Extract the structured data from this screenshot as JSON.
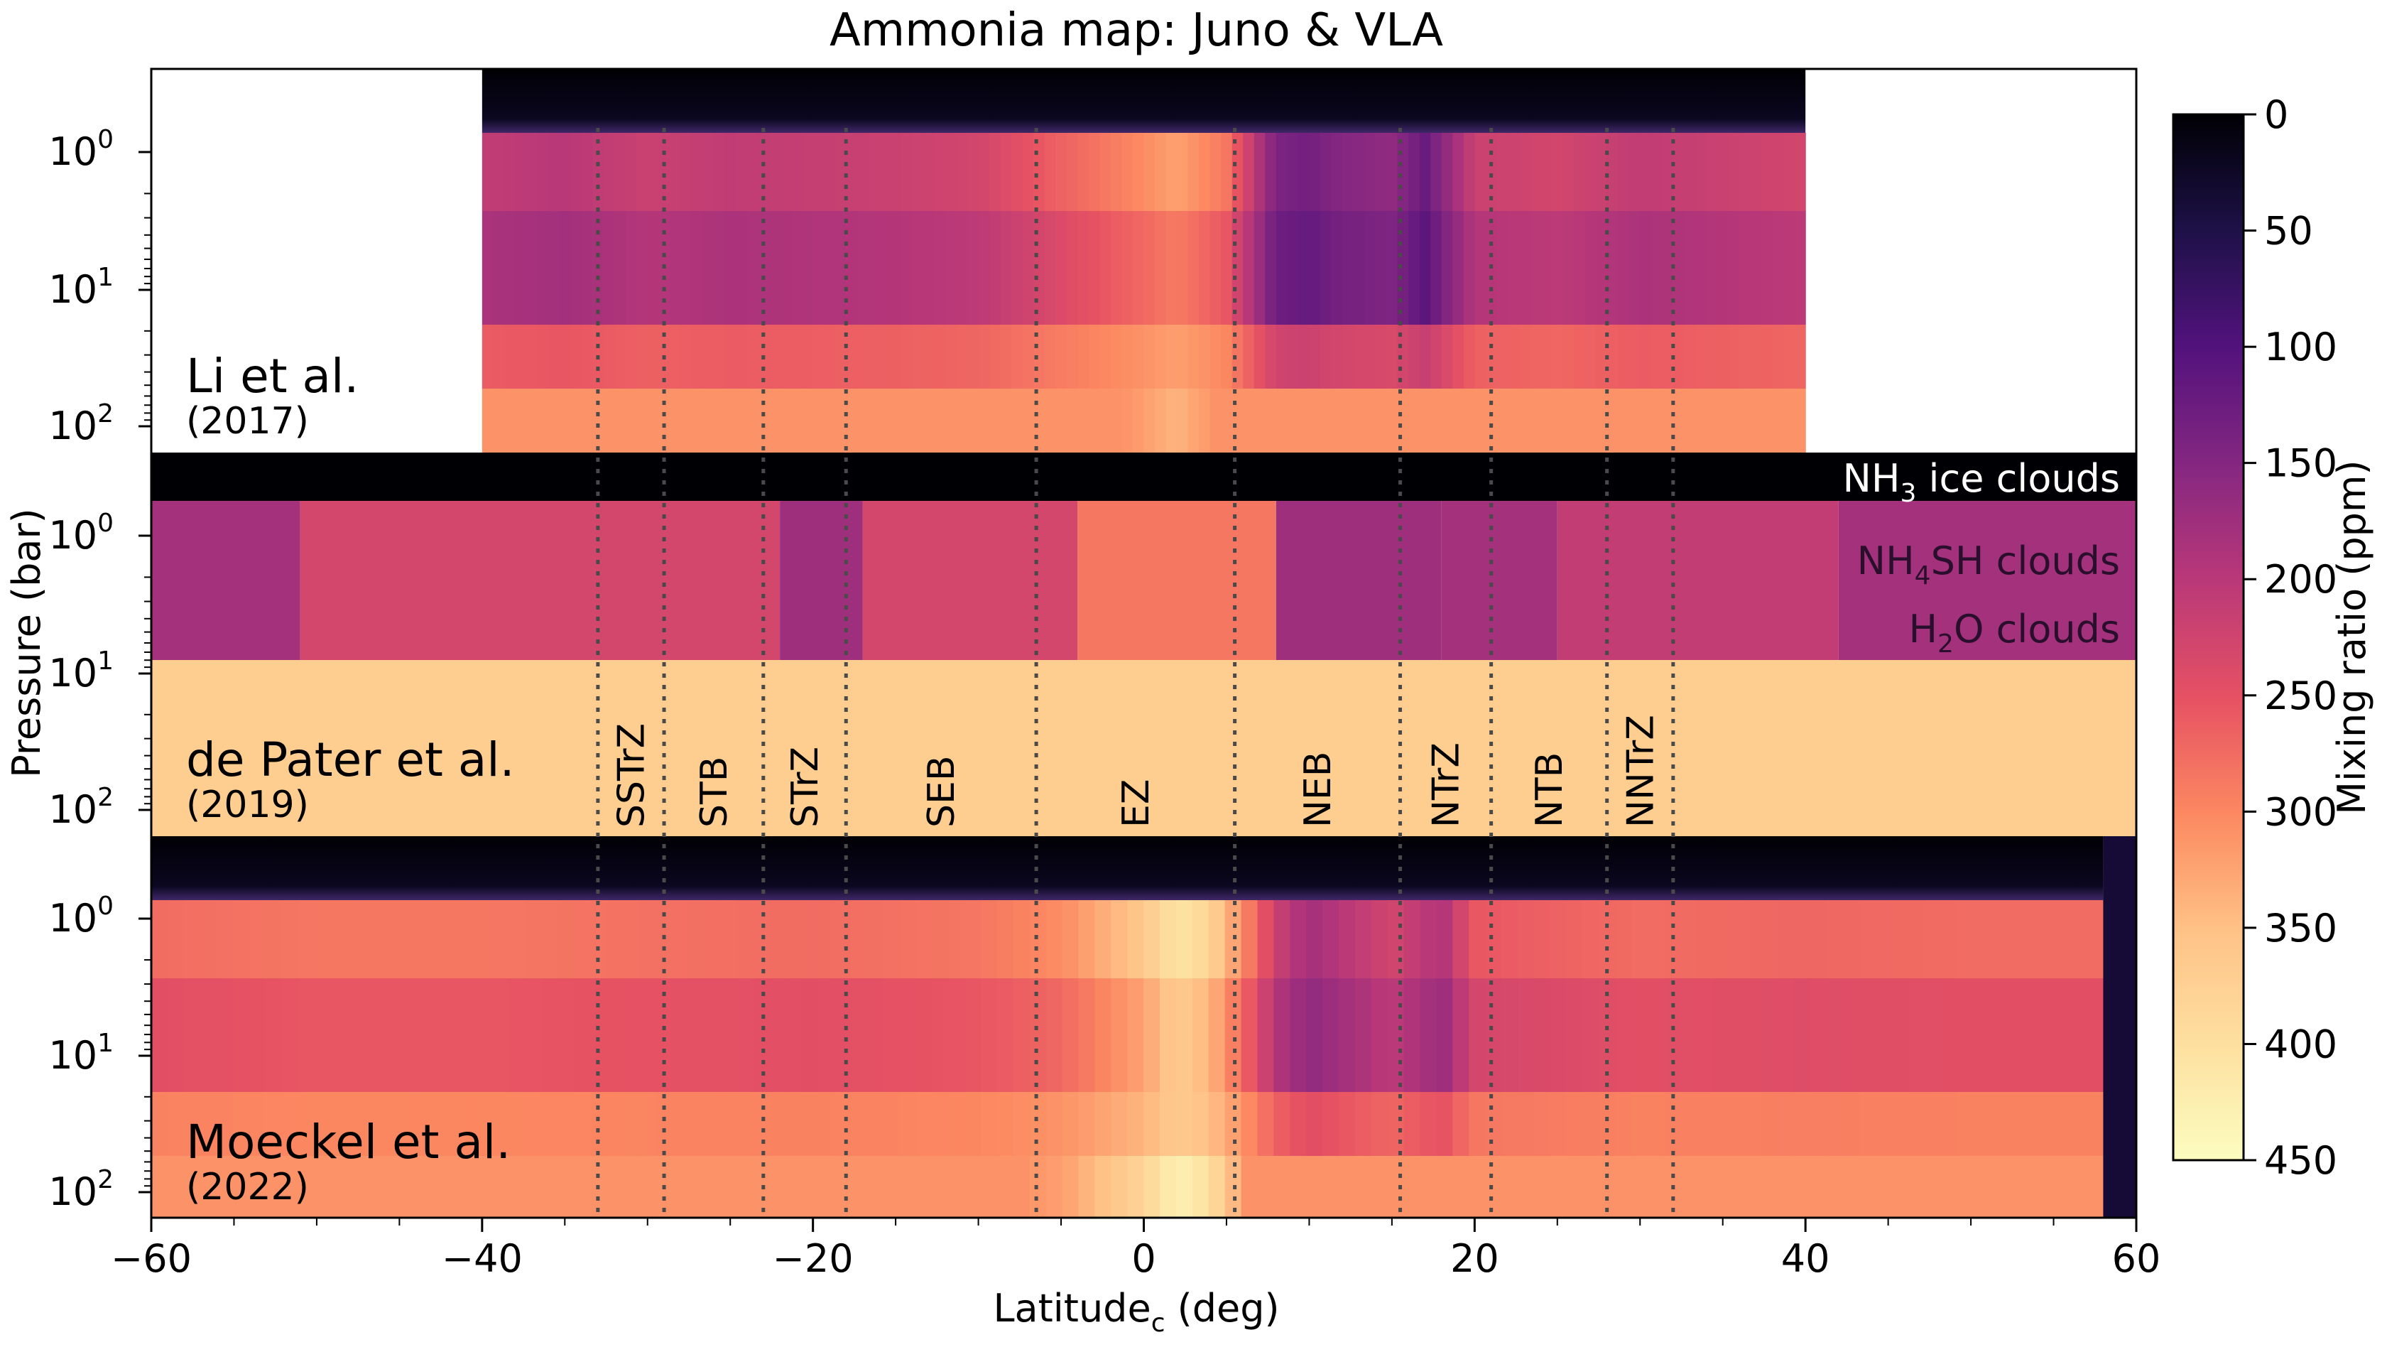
{
  "chart_data": {
    "type": "heatmap",
    "title": "Ammonia map: Juno & VLA",
    "xlabel": "Latitude",
    "xlabel_sub": "c",
    "xlabel_unit": " (deg)",
    "ylabel": "Pressure (bar)",
    "xlim": [
      -60,
      60
    ],
    "x_ticks": [
      -60,
      -40,
      -20,
      0,
      20,
      40,
      60
    ],
    "x_tick_labels": [
      "−60",
      "−40",
      "−20",
      "0",
      "20",
      "40",
      "60"
    ],
    "y_scale": "log",
    "y_tick_labels": [
      "10",
      "10",
      "10"
    ],
    "y_tick_exponents": [
      "0",
      "1",
      "2"
    ],
    "colorbar": {
      "label": "Mixing ratio (ppm)",
      "colormap": "magma",
      "range": [
        0,
        450
      ],
      "ticks": [
        0,
        50,
        100,
        150,
        200,
        250,
        300,
        350,
        400,
        450
      ],
      "tick_labels": [
        "0",
        "50",
        "100",
        "150",
        "200",
        "250",
        "300",
        "350",
        "400",
        "450"
      ]
    },
    "panels": [
      {
        "id": "li",
        "label_main": "Li et al.",
        "label_year": "(2017)",
        "lat_range": [
          -40,
          40
        ],
        "lat": [
          -40,
          -35,
          -30,
          -25,
          -20,
          -15,
          -10,
          -5,
          0,
          2,
          5,
          8,
          10,
          12,
          15,
          17,
          20,
          25,
          30,
          35,
          40
        ],
        "profile_ppm": [
          220,
          210,
          230,
          220,
          225,
          230,
          240,
          280,
          320,
          340,
          300,
          150,
          140,
          160,
          170,
          130,
          230,
          240,
          220,
          230,
          240
        ]
      },
      {
        "id": "depater",
        "label_main": "de Pater et al.",
        "label_year": "(2019)",
        "lat_range": [
          -60,
          60
        ],
        "deep_value_ppm": 370,
        "cloud_labels": [
          {
            "text": "NH",
            "sub": "3",
            "rest": " ice clouds"
          },
          {
            "text": "NH",
            "sub": "4",
            "rest": "SH clouds"
          },
          {
            "text": "H",
            "sub": "2",
            "rest": "O clouds"
          }
        ],
        "upper_blocks": [
          {
            "lat0": -60,
            "lat1": -51,
            "ppm": 180
          },
          {
            "lat0": -51,
            "lat1": -22,
            "ppm": 230
          },
          {
            "lat0": -22,
            "lat1": -17,
            "ppm": 175
          },
          {
            "lat0": -17,
            "lat1": -4,
            "ppm": 230
          },
          {
            "lat0": -4,
            "lat1": 8,
            "ppm": 285
          },
          {
            "lat0": 8,
            "lat1": 18,
            "ppm": 175
          },
          {
            "lat0": 18,
            "lat1": 25,
            "ppm": 180
          },
          {
            "lat0": 25,
            "lat1": 42,
            "ppm": 210
          },
          {
            "lat0": 42,
            "lat1": 60,
            "ppm": 180
          }
        ]
      },
      {
        "id": "moeckel",
        "label_main": "Moeckel et al.",
        "label_year": "(2022)",
        "lat_range": [
          -60,
          58
        ],
        "lat": [
          -60,
          -50,
          -40,
          -30,
          -20,
          -10,
          -5,
          0,
          2,
          4,
          6,
          8,
          10,
          12,
          15,
          18,
          20,
          30,
          40,
          50,
          58
        ],
        "profile_ppm": [
          290,
          300,
          300,
          295,
          290,
          300,
          320,
          380,
          430,
          400,
          320,
          230,
          190,
          210,
          240,
          200,
          270,
          290,
          285,
          290,
          290
        ]
      }
    ],
    "zones": [
      {
        "lat": -33,
        "name": ""
      },
      {
        "lat": -29,
        "name": "SSTrZ"
      },
      {
        "lat": -23,
        "name": "STB"
      },
      {
        "lat": -18,
        "name": "STrZ"
      },
      {
        "lat": -6.5,
        "name": "SEB"
      },
      {
        "lat": 5.5,
        "name": "EZ"
      },
      {
        "lat": 15.5,
        "name": "NEB"
      },
      {
        "lat": 21,
        "name": "NTrZ"
      },
      {
        "lat": 28,
        "name": "NTB"
      },
      {
        "lat": 32,
        "name": "NNTrZ"
      }
    ]
  }
}
